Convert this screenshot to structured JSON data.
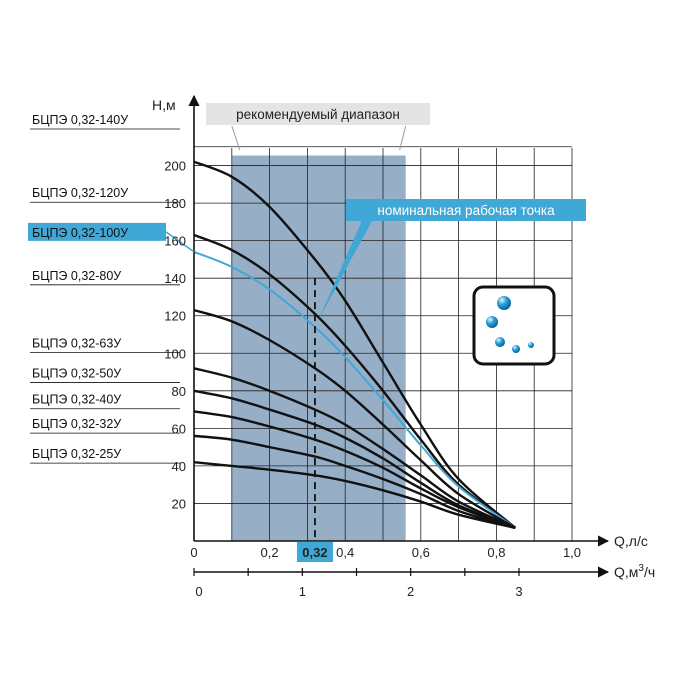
{
  "chart_data": {
    "type": "line",
    "title": "",
    "xlabel": "Q,л/с",
    "x2label_prefix": "Q,м",
    "x2label_sup": "3",
    "x2label_suffix": "/ч",
    "ylabel": "Н,м",
    "xlim": [
      0,
      1.0
    ],
    "ylim": [
      0,
      220
    ],
    "x_ticks": [
      {
        "v": 0,
        "label": "0"
      },
      {
        "v": 0.2,
        "label": "0,2"
      },
      {
        "v": 0.4,
        "label": "0,4"
      },
      {
        "v": 0.6,
        "label": "0,6"
      },
      {
        "v": 0.8,
        "label": "0,8"
      },
      {
        "v": 1.0,
        "label": "1,0"
      }
    ],
    "x2_ticks": [
      {
        "v": 0,
        "label": "0"
      },
      {
        "v": 1,
        "label": "1"
      },
      {
        "v": 2,
        "label": "2"
      },
      {
        "v": 3,
        "label": "3"
      }
    ],
    "x2_lim": [
      0,
      3.6
    ],
    "y_ticks": [
      20,
      40,
      60,
      80,
      100,
      120,
      140,
      160,
      180,
      200
    ],
    "recommended_range": {
      "label": "рекомендуемый диапазон",
      "x": [
        0.1,
        0.56
      ]
    },
    "nominal_point": {
      "label": "номинальная рабочая точка",
      "x": 0.32,
      "x_label": "0,32"
    },
    "series": [
      {
        "name": "БЦПЭ 0,32-140У",
        "x": [
          0,
          0.1,
          0.2,
          0.32,
          0.4,
          0.5,
          0.6,
          0.7,
          0.85
        ],
        "y": [
          202,
          194,
          178,
          150,
          128,
          95,
          62,
          33,
          7
        ],
        "label_y": 220,
        "highlight": false
      },
      {
        "name": "БЦПЭ 0,32-120У",
        "x": [
          0,
          0.1,
          0.2,
          0.32,
          0.4,
          0.5,
          0.6,
          0.7,
          0.85
        ],
        "y": [
          163,
          155,
          142,
          121,
          104,
          80,
          54,
          30,
          7
        ],
        "label_y": 181,
        "highlight": false
      },
      {
        "name": "БЦПЭ 0,32-100У",
        "x": [
          0,
          0.1,
          0.2,
          0.32,
          0.4,
          0.5,
          0.6,
          0.7,
          0.85
        ],
        "y": [
          154,
          146,
          134,
          114,
          98,
          75,
          51,
          29,
          7
        ],
        "label_y": 162,
        "highlight": true
      },
      {
        "name": "БЦПЭ 0,32-80У",
        "x": [
          0,
          0.1,
          0.2,
          0.32,
          0.4,
          0.5,
          0.6,
          0.7,
          0.85
        ],
        "y": [
          123,
          117,
          107,
          92,
          80,
          62,
          43,
          25,
          7
        ],
        "label_y": 137,
        "highlight": false
      },
      {
        "name": "БЦПЭ 0,32-63У",
        "x": [
          0,
          0.1,
          0.2,
          0.32,
          0.4,
          0.5,
          0.6,
          0.7,
          0.85
        ],
        "y": [
          92,
          87,
          80,
          70,
          62,
          49,
          35,
          21,
          7
        ],
        "label_y": 101,
        "highlight": false
      },
      {
        "name": "БЦПЭ 0,32-50У",
        "x": [
          0,
          0.1,
          0.2,
          0.32,
          0.4,
          0.5,
          0.6,
          0.7,
          0.85
        ],
        "y": [
          80,
          76,
          70,
          62,
          55,
          44,
          31,
          19,
          7
        ],
        "label_y": 85,
        "highlight": false
      },
      {
        "name": "БЦПЭ 0,32-40У",
        "x": [
          0,
          0.1,
          0.2,
          0.32,
          0.4,
          0.5,
          0.6,
          0.7,
          0.85
        ],
        "y": [
          69,
          66,
          61,
          54,
          48,
          39,
          28,
          18,
          7
        ],
        "label_y": 71,
        "highlight": false
      },
      {
        "name": "БЦПЭ 0,32-32У",
        "x": [
          0,
          0.1,
          0.2,
          0.32,
          0.4,
          0.5,
          0.6,
          0.7,
          0.85
        ],
        "y": [
          56,
          54,
          50,
          45,
          40,
          33,
          25,
          16,
          7
        ],
        "label_y": 58,
        "highlight": false
      },
      {
        "name": "БЦПЭ 0,32-25У",
        "x": [
          0,
          0.1,
          0.2,
          0.32,
          0.4,
          0.5,
          0.6,
          0.7,
          0.85
        ],
        "y": [
          42,
          40,
          38,
          35,
          32,
          27,
          21,
          14,
          7
        ],
        "label_y": 42,
        "highlight": false
      }
    ],
    "grid": true,
    "colors": {
      "curve": "#111111",
      "highlight": "#3fa8d6",
      "range_fill": "#97aec7",
      "grid": "#222222"
    },
    "logo_icon": "water-bubbles-icon"
  }
}
